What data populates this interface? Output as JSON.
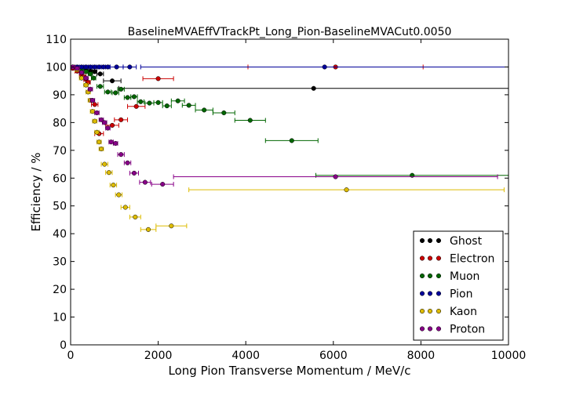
{
  "chart_data": {
    "type": "scatter",
    "title": "BaselineMVAEffVTrackPt_Long_Pion-BaselineMVACut0.0050",
    "xlabel": "Long Pion Transverse Momentum / MeV/c",
    "ylabel": "Efficiency / %",
    "xlim": [
      0,
      10000
    ],
    "ylim": [
      0,
      110
    ],
    "x_ticks": [
      0,
      2000,
      4000,
      6000,
      8000,
      10000
    ],
    "y_ticks": [
      0,
      10,
      20,
      30,
      40,
      50,
      60,
      70,
      80,
      90,
      100,
      110
    ],
    "grid": false,
    "legend_position": "lower-right",
    "series": [
      {
        "name": "Ghost",
        "color": "#000000",
        "points": [
          {
            "x": 50,
            "y": 100,
            "xerr": 50
          },
          {
            "x": 150,
            "y": 99.5,
            "xerr": 50
          },
          {
            "x": 250,
            "y": 99,
            "xerr": 50
          },
          {
            "x": 350,
            "y": 98.7,
            "xerr": 50
          },
          {
            "x": 450,
            "y": 98.5,
            "xerr": 50
          },
          {
            "x": 550,
            "y": 98.3,
            "xerr": 50
          },
          {
            "x": 675,
            "y": 97.5,
            "xerr": 75
          },
          {
            "x": 950,
            "y": 95,
            "xerr": 200
          },
          {
            "x": 5550,
            "y": 92.3,
            "xerr": 4450
          }
        ]
      },
      {
        "name": "Electron",
        "color": "#cc0000",
        "points": [
          {
            "x": 50,
            "y": 99.5,
            "xerr": 50
          },
          {
            "x": 150,
            "y": 98.5,
            "xerr": 50
          },
          {
            "x": 250,
            "y": 97,
            "xerr": 50
          },
          {
            "x": 300,
            "y": 96.5,
            "xerr": 50
          },
          {
            "x": 350,
            "y": 95.5,
            "xerr": 50
          },
          {
            "x": 400,
            "y": 94.5,
            "xerr": 50
          },
          {
            "x": 2000,
            "y": 95.8,
            "xerr": 350
          },
          {
            "x": 550,
            "y": 86.5,
            "xerr": 75
          },
          {
            "x": 1500,
            "y": 85.8,
            "xerr": 200
          },
          {
            "x": 1150,
            "y": 81,
            "xerr": 150
          },
          {
            "x": 950,
            "y": 79,
            "xerr": 150
          },
          {
            "x": 650,
            "y": 76,
            "xerr": 100
          },
          {
            "x": 6050,
            "y": 100,
            "xerr": 2000
          }
        ]
      },
      {
        "name": "Muon",
        "color": "#006600",
        "points": [
          {
            "x": 50,
            "y": 100,
            "xerr": 50
          },
          {
            "x": 150,
            "y": 99.5,
            "xerr": 50
          },
          {
            "x": 250,
            "y": 99,
            "xerr": 50
          },
          {
            "x": 350,
            "y": 98.3,
            "xerr": 50
          },
          {
            "x": 450,
            "y": 97.5,
            "xerr": 50
          },
          {
            "x": 525,
            "y": 96,
            "xerr": 50
          },
          {
            "x": 675,
            "y": 93,
            "xerr": 75
          },
          {
            "x": 850,
            "y": 91,
            "xerr": 75
          },
          {
            "x": 1025,
            "y": 90.7,
            "xerr": 75
          },
          {
            "x": 1150,
            "y": 92,
            "xerr": 75
          },
          {
            "x": 1300,
            "y": 89,
            "xerr": 75
          },
          {
            "x": 1450,
            "y": 89.3,
            "xerr": 75
          },
          {
            "x": 1600,
            "y": 87.5,
            "xerr": 75
          },
          {
            "x": 1800,
            "y": 87,
            "xerr": 100
          },
          {
            "x": 2000,
            "y": 87.2,
            "xerr": 100
          },
          {
            "x": 2200,
            "y": 86,
            "xerr": 100
          },
          {
            "x": 2450,
            "y": 87.8,
            "xerr": 150
          },
          {
            "x": 2700,
            "y": 86.2,
            "xerr": 150
          },
          {
            "x": 3050,
            "y": 84.5,
            "xerr": 200
          },
          {
            "x": 3500,
            "y": 83.5,
            "xerr": 250
          },
          {
            "x": 4100,
            "y": 80.8,
            "xerr": 350
          },
          {
            "x": 5050,
            "y": 73.5,
            "xerr": 600
          },
          {
            "x": 7800,
            "y": 61,
            "xerr": 2200
          }
        ]
      },
      {
        "name": "Pion",
        "color": "#000099",
        "points": [
          {
            "x": 50,
            "y": 100,
            "xerr": 50
          },
          {
            "x": 150,
            "y": 100,
            "xerr": 50
          },
          {
            "x": 250,
            "y": 100,
            "xerr": 50
          },
          {
            "x": 350,
            "y": 100,
            "xerr": 50
          },
          {
            "x": 450,
            "y": 100,
            "xerr": 50
          },
          {
            "x": 550,
            "y": 100,
            "xerr": 50
          },
          {
            "x": 650,
            "y": 100,
            "xerr": 50
          },
          {
            "x": 750,
            "y": 100,
            "xerr": 50
          },
          {
            "x": 850,
            "y": 100,
            "xerr": 50
          },
          {
            "x": 1050,
            "y": 100,
            "xerr": 150
          },
          {
            "x": 1350,
            "y": 100,
            "xerr": 150
          },
          {
            "x": 5800,
            "y": 100,
            "xerr": 4200
          }
        ]
      },
      {
        "name": "Kaon",
        "color": "#ddbb00",
        "points": [
          {
            "x": 50,
            "y": 100,
            "xerr": 50
          },
          {
            "x": 150,
            "y": 99,
            "xerr": 50
          },
          {
            "x": 250,
            "y": 96,
            "xerr": 50
          },
          {
            "x": 350,
            "y": 93.5,
            "xerr": 50
          },
          {
            "x": 400,
            "y": 91,
            "xerr": 50
          },
          {
            "x": 450,
            "y": 88,
            "xerr": 50
          },
          {
            "x": 500,
            "y": 84,
            "xerr": 50
          },
          {
            "x": 550,
            "y": 80.5,
            "xerr": 50
          },
          {
            "x": 600,
            "y": 76.5,
            "xerr": 50
          },
          {
            "x": 650,
            "y": 73,
            "xerr": 50
          },
          {
            "x": 700,
            "y": 70.5,
            "xerr": 50
          },
          {
            "x": 775,
            "y": 65,
            "xerr": 75
          },
          {
            "x": 875,
            "y": 62,
            "xerr": 75
          },
          {
            "x": 975,
            "y": 57.5,
            "xerr": 75
          },
          {
            "x": 1100,
            "y": 54,
            "xerr": 75
          },
          {
            "x": 1250,
            "y": 49.5,
            "xerr": 100
          },
          {
            "x": 1475,
            "y": 46,
            "xerr": 125
          },
          {
            "x": 1775,
            "y": 41.5,
            "xerr": 175
          },
          {
            "x": 2300,
            "y": 42.8,
            "xerr": 350
          },
          {
            "x": 6300,
            "y": 55.8,
            "xerr": 3600
          }
        ]
      },
      {
        "name": "Proton",
        "color": "#880088",
        "points": [
          {
            "x": 50,
            "y": 100,
            "xerr": 50
          },
          {
            "x": 150,
            "y": 99.5,
            "xerr": 50
          },
          {
            "x": 250,
            "y": 98,
            "xerr": 50
          },
          {
            "x": 350,
            "y": 96,
            "xerr": 50
          },
          {
            "x": 450,
            "y": 92,
            "xerr": 50
          },
          {
            "x": 500,
            "y": 88,
            "xerr": 50
          },
          {
            "x": 600,
            "y": 83.5,
            "xerr": 50
          },
          {
            "x": 700,
            "y": 81,
            "xerr": 50
          },
          {
            "x": 775,
            "y": 80,
            "xerr": 50
          },
          {
            "x": 850,
            "y": 78,
            "xerr": 50
          },
          {
            "x": 925,
            "y": 73,
            "xerr": 50
          },
          {
            "x": 1025,
            "y": 72.5,
            "xerr": 50
          },
          {
            "x": 1150,
            "y": 68.5,
            "xerr": 75
          },
          {
            "x": 1300,
            "y": 65.5,
            "xerr": 75
          },
          {
            "x": 1450,
            "y": 61.8,
            "xerr": 100
          },
          {
            "x": 1700,
            "y": 58.5,
            "xerr": 125
          },
          {
            "x": 2100,
            "y": 57.8,
            "xerr": 250
          },
          {
            "x": 6050,
            "y": 60.5,
            "xerr": 3700
          }
        ]
      }
    ]
  }
}
